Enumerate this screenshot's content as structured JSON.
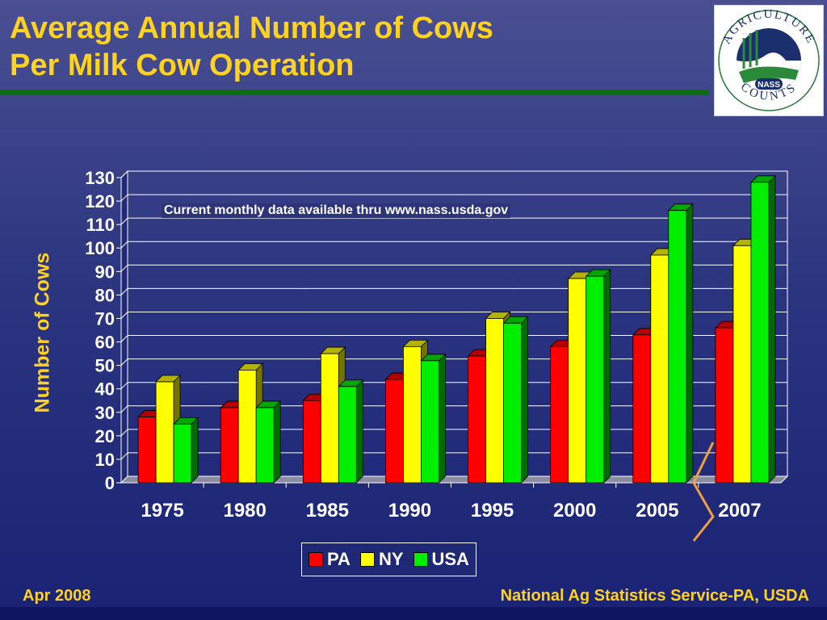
{
  "header": {
    "title_line1": "Average Annual Number of Cows",
    "title_line2": "Per Milk Cow Operation"
  },
  "logo": {
    "text_top": "AGRICULTURE",
    "text_bottom": "COUNTS",
    "badge": "NASS"
  },
  "note": "Current monthly data available thru www.nass.usda.gov",
  "footer": {
    "date": "Apr 2008",
    "source": "National Ag Statistics Service-PA, USDA"
  },
  "colors": {
    "PA": "#ff0000",
    "NY": "#ffff00",
    "USA": "#00ee00",
    "title": "#ffd21f"
  },
  "chart_data": {
    "type": "bar",
    "title": "",
    "xlabel": "",
    "ylabel": "Number of Cows",
    "ylim": [
      0,
      130
    ],
    "yticks": [
      0,
      10,
      20,
      30,
      40,
      50,
      60,
      70,
      80,
      90,
      100,
      110,
      120,
      130
    ],
    "grid": true,
    "legend_position": "bottom-center",
    "categories": [
      "1975",
      "1980",
      "1985",
      "1990",
      "1995",
      "2000",
      "2005",
      "2007"
    ],
    "series": [
      {
        "name": "PA",
        "values": [
          28,
          32,
          35,
          44,
          54,
          58,
          63,
          66
        ]
      },
      {
        "name": "NY",
        "values": [
          43,
          48,
          55,
          58,
          70,
          87,
          97,
          101
        ]
      },
      {
        "name": "USA",
        "values": [
          25,
          32,
          41,
          52,
          68,
          88,
          116,
          128
        ]
      }
    ]
  }
}
